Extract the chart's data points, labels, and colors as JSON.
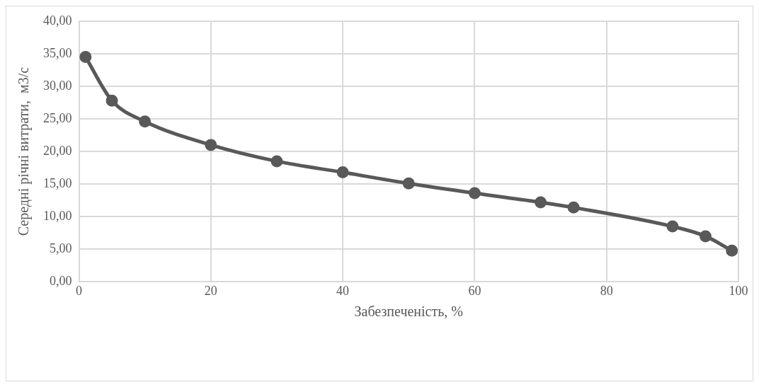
{
  "chart_data": {
    "type": "line",
    "xlabel": "Забезпеченість, %",
    "ylabel": "Середні річні витрати,  м3/с",
    "x": [
      1,
      5,
      10,
      20,
      30,
      40,
      50,
      60,
      70,
      75,
      90,
      95,
      99
    ],
    "series": [
      {
        "color": "#595959",
        "values": [
          34.5,
          27.8,
          24.6,
          21.0,
          18.5,
          16.8,
          15.1,
          13.6,
          12.2,
          11.4,
          8.5,
          7.0,
          4.8
        ]
      }
    ],
    "xlim": [
      0,
      100
    ],
    "xticks": [
      0,
      20,
      40,
      60,
      80,
      100
    ],
    "ylim": [
      0,
      40
    ],
    "yticks": [
      {
        "value": 0,
        "label": "0,00"
      },
      {
        "value": 5,
        "label": "5,00"
      },
      {
        "value": 10,
        "label": "10,00"
      },
      {
        "value": 15,
        "label": "15,00"
      },
      {
        "value": 20,
        "label": "20,00"
      },
      {
        "value": 25,
        "label": "25,00"
      },
      {
        "value": 30,
        "label": "30,00"
      },
      {
        "value": 35,
        "label": "35,00"
      },
      {
        "value": 40,
        "label": "40,00"
      }
    ],
    "grid": true,
    "legend": false,
    "marker": "circle",
    "line_style": "solid"
  }
}
